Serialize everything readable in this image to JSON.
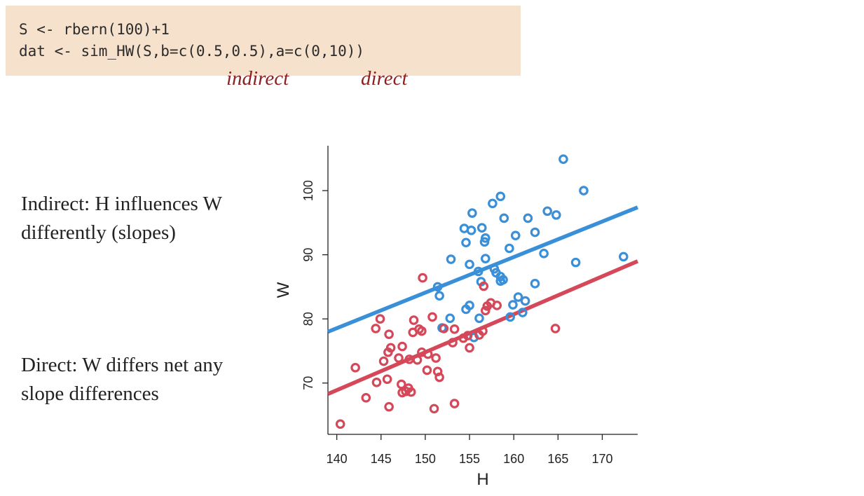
{
  "code": {
    "line1": "S <- rbern(100)+1",
    "line2": "dat <- sim_HW(S,b=c(0.5,0.5),a=c(0,10))"
  },
  "annotations": {
    "indirect": "indirect",
    "direct": "direct"
  },
  "text": {
    "indirect_line1": "Indirect: H influences W",
    "indirect_line2": "differently (slopes)",
    "direct_line1": "Direct: W differs net any",
    "direct_line2": "slope differences"
  },
  "colors": {
    "blue": "#3a8fd9",
    "red": "#d4485a",
    "code_bg": "#f6e1cd",
    "annotation": "#8c1f1f"
  },
  "chart_data": {
    "type": "scatter",
    "title": "",
    "xlabel": "H",
    "ylabel": "W",
    "xlim": [
      139,
      174
    ],
    "ylim": [
      62,
      107
    ],
    "xticks": [
      140,
      145,
      150,
      155,
      160,
      165,
      170
    ],
    "yticks": [
      70,
      80,
      90,
      100
    ],
    "grid": false,
    "legend": "none",
    "series": [
      {
        "color": "#3a8fd9",
        "points": [
          [
            165.6,
            104.9
          ],
          [
            167.9,
            100.0
          ],
          [
            158.5,
            99.1
          ],
          [
            157.6,
            98.0
          ],
          [
            163.8,
            96.8
          ],
          [
            164.8,
            96.2
          ],
          [
            155.3,
            96.5
          ],
          [
            158.9,
            95.7
          ],
          [
            161.6,
            95.7
          ],
          [
            154.4,
            94.1
          ],
          [
            155.2,
            93.8
          ],
          [
            156.4,
            94.2
          ],
          [
            162.4,
            93.5
          ],
          [
            160.2,
            93.0
          ],
          [
            156.8,
            92.6
          ],
          [
            156.7,
            92.0
          ],
          [
            154.6,
            91.9
          ],
          [
            159.5,
            91.0
          ],
          [
            163.4,
            90.2
          ],
          [
            156.8,
            89.4
          ],
          [
            152.9,
            89.3
          ],
          [
            155.0,
            88.5
          ],
          [
            167.0,
            88.8
          ],
          [
            172.4,
            89.7
          ],
          [
            157.8,
            87.8
          ],
          [
            156.0,
            87.4
          ],
          [
            158.0,
            87.2
          ],
          [
            158.5,
            86.6
          ],
          [
            158.8,
            86.1
          ],
          [
            158.5,
            85.9
          ],
          [
            156.3,
            85.8
          ],
          [
            162.4,
            85.5
          ],
          [
            151.4,
            85.0
          ],
          [
            151.6,
            83.6
          ],
          [
            160.5,
            83.4
          ],
          [
            161.3,
            82.8
          ],
          [
            159.9,
            82.2
          ],
          [
            155.0,
            82.1
          ],
          [
            154.6,
            81.5
          ],
          [
            161.0,
            81.0
          ],
          [
            159.6,
            80.3
          ],
          [
            156.1,
            80.1
          ],
          [
            152.8,
            80.1
          ],
          [
            151.9,
            78.6
          ],
          [
            155.5,
            77.1
          ]
        ],
        "fit": {
          "x": [
            139,
            174
          ],
          "y": [
            78.0,
            97.4
          ]
        }
      },
      {
        "color": "#d4485a",
        "points": [
          [
            149.7,
            86.4
          ],
          [
            156.6,
            85.1
          ],
          [
            157.4,
            82.5
          ],
          [
            158.1,
            82.1
          ],
          [
            157.0,
            82.0
          ],
          [
            156.8,
            81.3
          ],
          [
            164.7,
            78.5
          ],
          [
            150.8,
            80.3
          ],
          [
            148.7,
            79.8
          ],
          [
            144.9,
            80.0
          ],
          [
            149.3,
            78.4
          ],
          [
            149.6,
            78.1
          ],
          [
            148.6,
            77.9
          ],
          [
            144.4,
            78.5
          ],
          [
            145.9,
            77.6
          ],
          [
            153.3,
            78.4
          ],
          [
            156.5,
            78.1
          ],
          [
            152.1,
            78.5
          ],
          [
            156.1,
            77.5
          ],
          [
            154.8,
            77.4
          ],
          [
            154.3,
            77.0
          ],
          [
            153.1,
            76.3
          ],
          [
            155.0,
            75.5
          ],
          [
            147.4,
            75.7
          ],
          [
            145.8,
            74.8
          ],
          [
            146.1,
            75.5
          ],
          [
            149.6,
            74.8
          ],
          [
            150.3,
            74.5
          ],
          [
            151.2,
            73.9
          ],
          [
            148.2,
            73.7
          ],
          [
            149.1,
            73.6
          ],
          [
            147.0,
            73.9
          ],
          [
            145.3,
            73.4
          ],
          [
            150.2,
            72.0
          ],
          [
            151.4,
            71.8
          ],
          [
            151.6,
            70.9
          ],
          [
            142.1,
            72.4
          ],
          [
            145.7,
            70.6
          ],
          [
            144.5,
            70.1
          ],
          [
            147.3,
            69.8
          ],
          [
            148.1,
            69.2
          ],
          [
            147.8,
            68.7
          ],
          [
            147.4,
            68.5
          ],
          [
            148.4,
            68.6
          ],
          [
            143.3,
            67.7
          ],
          [
            153.3,
            66.8
          ],
          [
            145.9,
            66.3
          ],
          [
            151.0,
            66.0
          ],
          [
            140.4,
            63.6
          ]
        ],
        "fit": {
          "x": [
            139,
            174
          ],
          "y": [
            68.3,
            89.0
          ]
        }
      }
    ]
  }
}
